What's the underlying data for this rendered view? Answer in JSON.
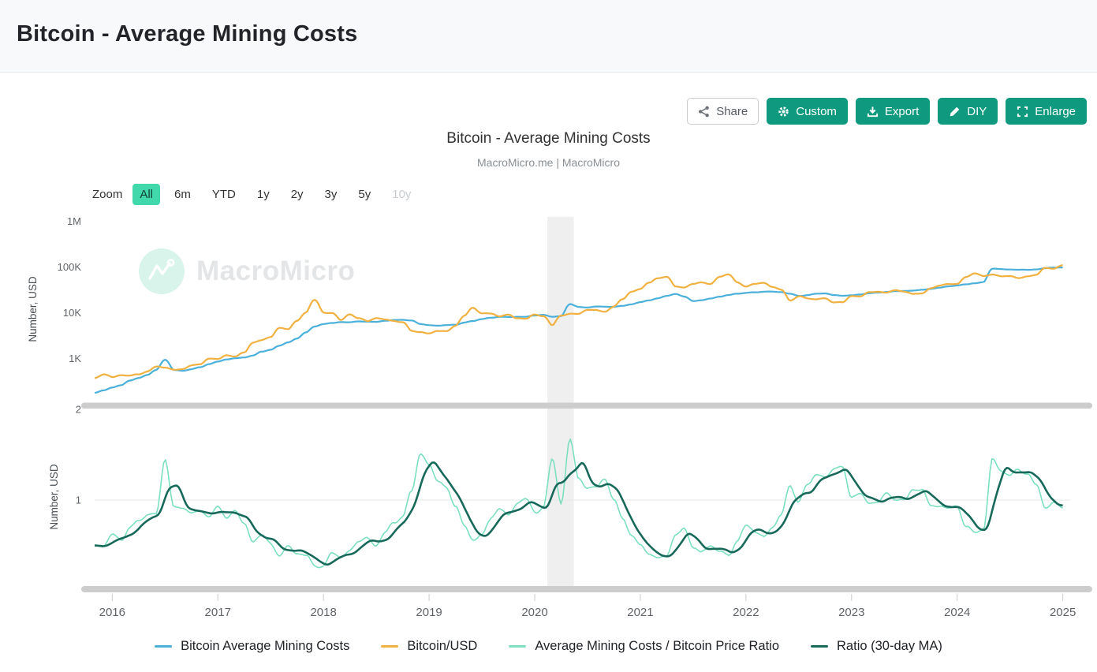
{
  "page": {
    "title": "Bitcoin - Average Mining Costs"
  },
  "toolbar": {
    "share_label": "Share",
    "custom_label": "Custom",
    "export_label": "Export",
    "diy_label": "DIY",
    "enlarge_label": "Enlarge"
  },
  "chart": {
    "title": "Bitcoin - Average Mining Costs",
    "subtitle": "MacroMicro.me | MacroMicro",
    "watermark": "MacroMicro",
    "zoom": {
      "label": "Zoom",
      "options": [
        "All",
        "6m",
        "YTD",
        "1y",
        "2y",
        "3y",
        "5y",
        "10y"
      ],
      "active": "All",
      "disabled": "10y"
    }
  },
  "colors": {
    "mining_costs": "#4bb0da",
    "btc_usd": "#f0b140",
    "ratio": "#7bdfc0",
    "ratio_ma": "#17695a",
    "button_teal": "#0f9a80",
    "zoom_active": "#41d9ac",
    "recession_band": "#efefef",
    "scrollbar": "#cdcdcd",
    "gridline": "#e7e7e7",
    "axis_text": "#606468"
  },
  "chart_data": {
    "type": "line",
    "x_unit": "year",
    "x_start_year": 2015.8333,
    "x_step_years": 0.083333,
    "x_ticks": [
      2016,
      2017,
      2018,
      2019,
      2020,
      2021,
      2022,
      2023,
      2024,
      2025
    ],
    "recession_band": {
      "from": 2020.12,
      "to": 2020.37
    },
    "panels": [
      {
        "ylabel": "Number, USD",
        "scale": "log",
        "ylim": [
          110,
          1250000
        ],
        "yticks": [
          [
            1000000,
            "1M"
          ],
          [
            100000,
            "100K"
          ],
          [
            10000,
            "10K"
          ],
          [
            1000,
            "1K"
          ]
        ],
        "series": [
          {
            "name": "Bitcoin Average Mining Costs",
            "color": "#4bb0da",
            "noise": 0.013,
            "values": [
              175,
              200,
              230,
              260,
              330,
              380,
              440,
              560,
              950,
              560,
              540,
              580,
              640,
              760,
              850,
              950,
              1000,
              1050,
              1150,
              1400,
              1550,
              1900,
              2250,
              2750,
              3700,
              5000,
              5600,
              6000,
              6300,
              6200,
              6500,
              6400,
              6300,
              6700,
              7000,
              7100,
              6800,
              5600,
              5300,
              5200,
              5300,
              5500,
              6000,
              6500,
              7200,
              7800,
              8200,
              8000,
              8300,
              8100,
              8700,
              9100,
              8200,
              8500,
              15500,
              13500,
              13000,
              13500,
              13800,
              13500,
              14200,
              15200,
              16800,
              18500,
              20500,
              23000,
              25500,
              22500,
              17800,
              18800,
              20300,
              22300,
              24300,
              26300,
              27500,
              28200,
              28600,
              29000,
              28500,
              26000,
              23500,
              24500,
              26000,
              26500,
              24500,
              23300,
              24200,
              25200,
              26600,
              27600,
              28600,
              29600,
              30100,
              30600,
              31600,
              33100,
              35600,
              38200,
              39600,
              41600,
              44200,
              47200,
              92000,
              90000,
              88500,
              86500,
              87000,
              88500,
              92000,
              95500,
              99000
            ]
          },
          {
            "name": "Bitcoin/USD",
            "color": "#f0b140",
            "noise": 0.03,
            "values": [
              378,
              430,
              370,
              437,
              416,
              448,
              531,
              673,
              624,
              575,
              610,
              700,
              745,
              963,
              970,
              1190,
              1080,
              1350,
              2300,
              2480,
              2870,
              4700,
              4360,
              6450,
              10000,
              19000,
              10200,
              10300,
              7000,
              9250,
              7500,
              6400,
              7750,
              7000,
              6600,
              6300,
              4000,
              3740,
              3460,
              3850,
              4100,
              5300,
              8550,
              12900,
              10000,
              9600,
              8300,
              9200,
              7550,
              7200,
              9350,
              8550,
              5300,
              8650,
              9450,
              9140,
              11350,
              11650,
              10780,
              13800,
              19700,
              29000,
              33100,
              45200,
              58800,
              62000,
              37300,
              35000,
              41500,
              47100,
              43800,
              61300,
              67000,
              46200,
              38480,
              43200,
              45540,
              37650,
              31800,
              19000,
              23300,
              20050,
              19430,
              20490,
              16500,
              16550,
              23140,
              23150,
              28480,
              29250,
              27220,
              30480,
              29230,
              25930,
              26970,
              34670,
              37720,
              42280,
              42580,
              61200,
              71330,
              63800,
              67540,
              62680,
              64620,
              58970,
              63330,
              70220,
              96400,
              93430,
              104000
            ]
          }
        ]
      },
      {
        "ylabel": "Number, USD",
        "scale": "linear",
        "ylim": [
          0.07,
          2.0
        ],
        "yticks": [
          [
            2,
            "2"
          ],
          [
            1,
            "1"
          ]
        ],
        "gridlines": [
          1
        ],
        "series": [
          {
            "name": "Average Mining Costs / Bitcoin Price Ratio",
            "color": "#7bdfc0",
            "noise": 0.055,
            "values": [
              0.52,
              0.48,
              0.62,
              0.58,
              0.72,
              0.82,
              0.85,
              0.86,
              1.45,
              0.95,
              0.9,
              0.86,
              0.88,
              0.82,
              0.92,
              0.8,
              0.92,
              0.78,
              0.55,
              0.6,
              0.52,
              0.42,
              0.52,
              0.44,
              0.38,
              0.27,
              0.3,
              0.42,
              0.38,
              0.45,
              0.52,
              0.58,
              0.5,
              0.62,
              0.72,
              0.8,
              1.1,
              1.52,
              1.38,
              1.2,
              1.15,
              0.95,
              0.72,
              0.58,
              0.65,
              0.8,
              0.88,
              0.82,
              0.95,
              0.98,
              0.88,
              0.95,
              1.45,
              0.95,
              1.7,
              1.25,
              1.1,
              1.12,
              1.2,
              1.02,
              0.8,
              0.6,
              0.52,
              0.42,
              0.36,
              0.38,
              0.62,
              0.68,
              0.48,
              0.42,
              0.46,
              0.38,
              0.38,
              0.52,
              0.68,
              0.64,
              0.62,
              0.74,
              0.88,
              1.18,
              0.98,
              1.15,
              1.28,
              1.25,
              1.35,
              1.4,
              1.05,
              1.06,
              0.95,
              0.95,
              1.05,
              0.98,
              1.02,
              1.15,
              1.15,
              0.95,
              0.92,
              0.88,
              0.92,
              0.7,
              0.6,
              0.68,
              1.45,
              1.3,
              1.25,
              1.35,
              1.3,
              1.18,
              0.92,
              0.98,
              0.92
            ]
          },
          {
            "name": "Ratio (30-day MA)",
            "color": "#17695a",
            "derived": "moving_average",
            "window_days": 30,
            "of": "Average Mining Costs / Bitcoin Price Ratio"
          }
        ]
      }
    ],
    "legend": [
      {
        "label": "Bitcoin Average Mining Costs",
        "color": "#4bb0da"
      },
      {
        "label": "Bitcoin/USD",
        "color": "#f0b140"
      },
      {
        "label": "Average Mining Costs / Bitcoin Price Ratio",
        "color": "#7bdfc0"
      },
      {
        "label": "Ratio (30-day MA)",
        "color": "#17695a"
      }
    ]
  }
}
